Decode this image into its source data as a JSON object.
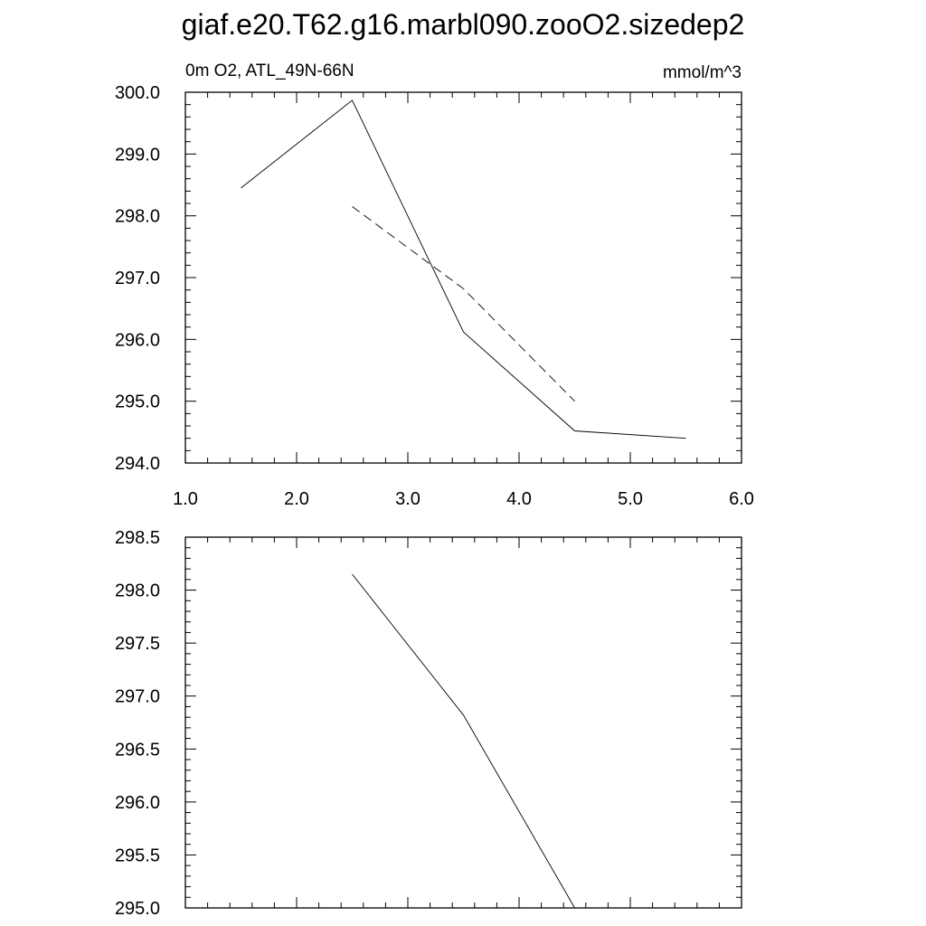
{
  "title": "giaf.e20.T62.g16.marbl090.zooO2.sizedep2",
  "chart_data": [
    {
      "type": "line",
      "left_label": "0m O2, ATL_49N-66N",
      "right_label": "mmol/m^3",
      "xlim": [
        1.0,
        6.0
      ],
      "ylim": [
        294.0,
        300.0
      ],
      "x_ticks": [
        "1.0",
        "2.0",
        "3.0",
        "4.0",
        "5.0",
        "6.0"
      ],
      "y_ticks": [
        "300.0",
        "299.0",
        "298.0",
        "297.0",
        "296.0",
        "295.0",
        "294.0"
      ],
      "grid": false,
      "series": [
        {
          "style": "solid",
          "x": [
            1.5,
            2.5,
            3.5,
            4.5,
            5.5
          ],
          "y": [
            298.45,
            299.87,
            296.12,
            294.52,
            294.4
          ]
        },
        {
          "style": "dashed",
          "x": [
            2.5,
            3.5,
            4.5
          ],
          "y": [
            298.15,
            296.82,
            295.0
          ]
        }
      ]
    },
    {
      "type": "line",
      "xlim": [
        1.0,
        6.0
      ],
      "ylim": [
        295.0,
        298.5
      ],
      "x_ticks": [],
      "y_ticks": [
        "298.5",
        "298.0",
        "297.5",
        "297.0",
        "296.5",
        "296.0",
        "295.5",
        "295.0"
      ],
      "grid": false,
      "series": [
        {
          "style": "solid",
          "x": [
            2.5,
            3.5,
            4.5
          ],
          "y": [
            298.15,
            296.82,
            295.0
          ]
        }
      ]
    }
  ]
}
